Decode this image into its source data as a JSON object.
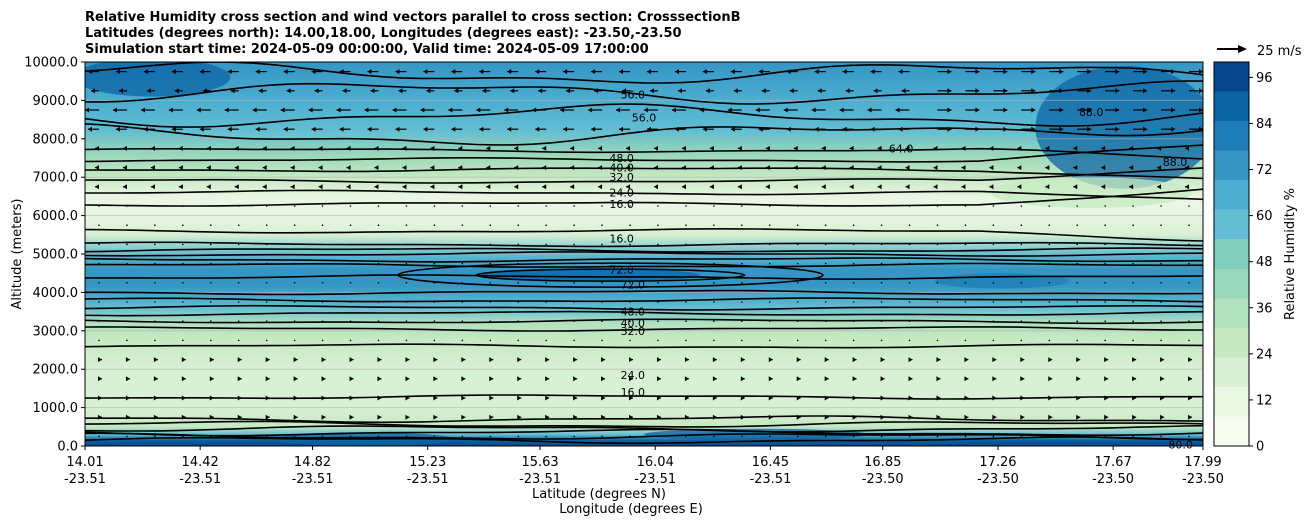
{
  "chart_data": {
    "type": "heatmap",
    "title_lines": [
      "Relative Humidity cross section and wind vectors parallel to cross section: CrosssectionB",
      "Latitudes (degrees north): 14.00,18.00, Longitudes (degrees east): -23.50,-23.50",
      "Simulation start time: 2024-05-09 00:00:00, Valid time: 2024-05-09 17:00:00"
    ],
    "ylabel": "Altitude (meters)",
    "xlabel_lat": "Latitude (degrees N)",
    "xlabel_lon": "Longitude (degrees E)",
    "ylim": [
      0,
      10000
    ],
    "y_ticks": [
      "0.0",
      "1000.0",
      "2000.0",
      "3000.0",
      "4000.0",
      "5000.0",
      "6000.0",
      "7000.0",
      "8000.0",
      "9000.0",
      "10000.0"
    ],
    "x_tick_lat": [
      "14.01",
      "14.42",
      "14.82",
      "15.23",
      "15.63",
      "16.04",
      "16.45",
      "16.85",
      "17.26",
      "17.67",
      "17.99"
    ],
    "x_tick_lon": [
      "-23.51",
      "-23.51",
      "-23.51",
      "-23.51",
      "-23.51",
      "-23.51",
      "-23.51",
      "-23.50",
      "-23.50",
      "-23.50",
      "-23.50"
    ],
    "colorbar": {
      "label": "Relative Humidity %",
      "range": [
        0,
        100
      ],
      "ticks": [
        "0",
        "12",
        "24",
        "36",
        "48",
        "60",
        "72",
        "84",
        "96"
      ],
      "colors": [
        "#f7fcf0",
        "#e8f6e3",
        "#d8f0d3",
        "#c6e9c2",
        "#b2e1be",
        "#99d7ba",
        "#7fcdbb",
        "#62bed2",
        "#4cadd0",
        "#3595c4",
        "#1d7eb7",
        "#0c64a4",
        "#08468b"
      ]
    },
    "quiver_key": "25 m/s",
    "rh_profile": [
      {
        "alt": 0,
        "rh": 96
      },
      {
        "alt": 150,
        "rh": 92
      },
      {
        "alt": 300,
        "rh": 60
      },
      {
        "alt": 500,
        "rh": 24
      },
      {
        "alt": 1000,
        "rh": 18
      },
      {
        "alt": 2000,
        "rh": 22
      },
      {
        "alt": 2800,
        "rh": 28
      },
      {
        "alt": 3200,
        "rh": 38
      },
      {
        "alt": 3600,
        "rh": 55
      },
      {
        "alt": 4200,
        "rh": 72
      },
      {
        "alt": 4600,
        "rh": 72
      },
      {
        "alt": 5000,
        "rh": 55
      },
      {
        "alt": 5500,
        "rh": 18
      },
      {
        "alt": 6000,
        "rh": 10
      },
      {
        "alt": 6500,
        "rh": 14
      },
      {
        "alt": 7000,
        "rh": 28
      },
      {
        "alt": 7600,
        "rh": 42
      },
      {
        "alt": 8200,
        "rh": 58
      },
      {
        "alt": 9000,
        "rh": 64
      },
      {
        "alt": 10000,
        "rh": 74
      }
    ],
    "contour_labels": [
      {
        "text": "56.0",
        "x": 0.49,
        "y": 9150
      },
      {
        "text": "56.0",
        "x": 0.5,
        "y": 8550
      },
      {
        "text": "64.0",
        "x": 0.73,
        "y": 7750
      },
      {
        "text": "48.0",
        "x": 0.48,
        "y": 7500
      },
      {
        "text": "40.0",
        "x": 0.48,
        "y": 7250
      },
      {
        "text": "32.0",
        "x": 0.48,
        "y": 7000
      },
      {
        "text": "24.0",
        "x": 0.48,
        "y": 6600
      },
      {
        "text": "16.0",
        "x": 0.48,
        "y": 6300
      },
      {
        "text": "16.0",
        "x": 0.48,
        "y": 5400
      },
      {
        "text": "72.0",
        "x": 0.48,
        "y": 4600
      },
      {
        "text": "72.0",
        "x": 0.49,
        "y": 4200
      },
      {
        "text": "48.0",
        "x": 0.49,
        "y": 3500
      },
      {
        "text": "40.0",
        "x": 0.49,
        "y": 3200
      },
      {
        "text": "32.0",
        "x": 0.49,
        "y": 3000
      },
      {
        "text": "24.0",
        "x": 0.49,
        "y": 1850
      },
      {
        "text": "16.0",
        "x": 0.49,
        "y": 1400
      },
      {
        "text": "80.0",
        "x": 0.98,
        "y": 40
      },
      {
        "text": "88.0",
        "x": 0.9,
        "y": 8700
      },
      {
        "text": "88.0",
        "x": 0.975,
        "y": 7400
      }
    ]
  }
}
